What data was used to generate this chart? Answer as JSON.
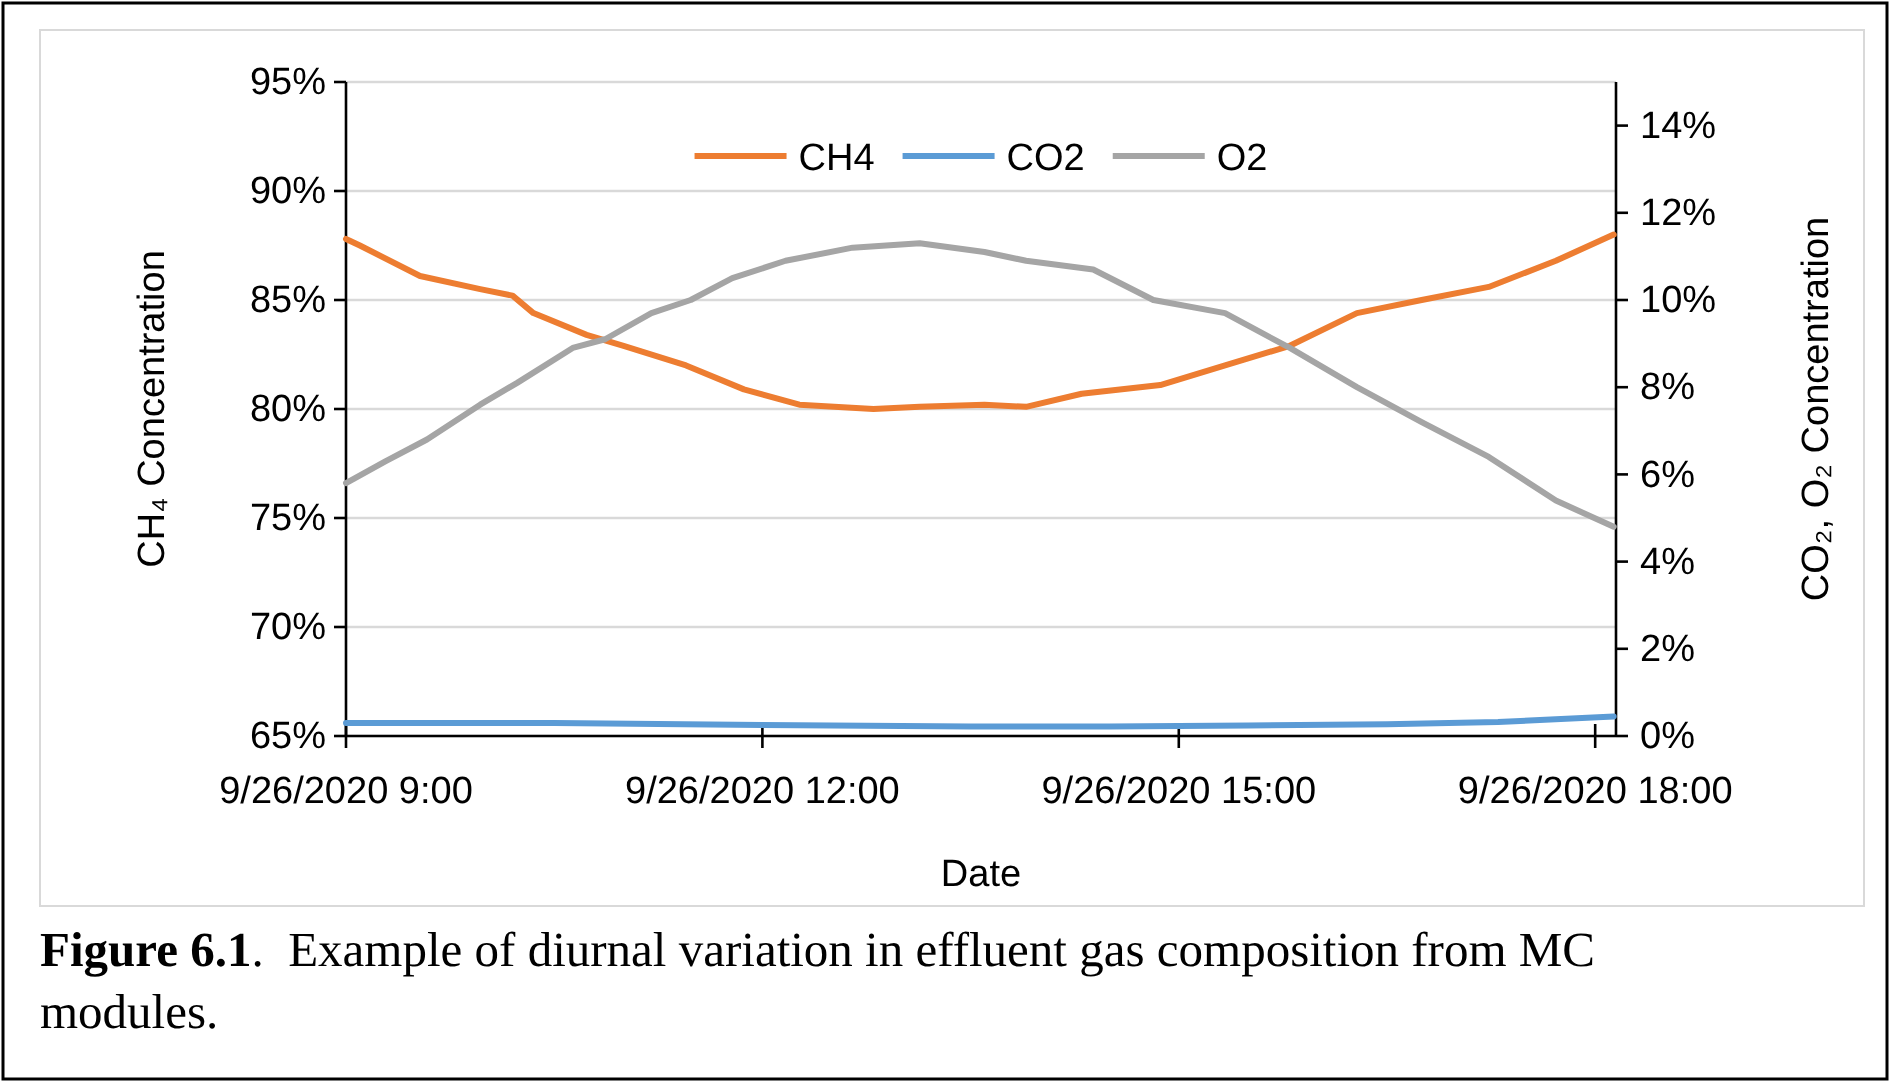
{
  "chart_data": {
    "type": "line",
    "xlabel": "Date",
    "ylabel": "CH₄ Concentration",
    "y2label": "CO₂, O₂ Concentration",
    "xlim": [
      "2020-09-26T09:00",
      "2020-09-26T18:09"
    ],
    "xticks": [
      {
        "value": "2020-09-26T09:00",
        "label": "9/26/2020 9:00"
      },
      {
        "value": "2020-09-26T12:00",
        "label": "9/26/2020 12:00"
      },
      {
        "value": "2020-09-26T15:00",
        "label": "9/26/2020 15:00"
      },
      {
        "value": "2020-09-26T18:00",
        "label": "9/26/2020 18:00"
      }
    ],
    "ylim": [
      65,
      95
    ],
    "yticks": [
      {
        "value": 65,
        "label": "65%"
      },
      {
        "value": 70,
        "label": "70%"
      },
      {
        "value": 75,
        "label": "75%"
      },
      {
        "value": 80,
        "label": "80%"
      },
      {
        "value": 85,
        "label": "85%"
      },
      {
        "value": 90,
        "label": "90%"
      },
      {
        "value": 95,
        "label": "95%"
      }
    ],
    "y2lim": [
      0,
      15
    ],
    "y2ticks": [
      {
        "value": 0,
        "label": "0%"
      },
      {
        "value": 2,
        "label": "2%"
      },
      {
        "value": 4,
        "label": "4%"
      },
      {
        "value": 6,
        "label": "6%"
      },
      {
        "value": 8,
        "label": "8%"
      },
      {
        "value": 10,
        "label": "10%"
      },
      {
        "value": 12,
        "label": "12%"
      },
      {
        "value": 14,
        "label": "14%"
      }
    ],
    "grid": "y",
    "legend": "top",
    "marker": "none",
    "line_style": "solid",
    "series": [
      {
        "name": "CH4",
        "color": "#ed7d31",
        "x": [
          "2020-09-26T09:00",
          "2020-09-26T09:06",
          "2020-09-26T09:32",
          "2020-09-26T09:58",
          "2020-09-26T10:12",
          "2020-09-26T10:21",
          "2020-09-26T10:44",
          "2020-09-26T11:00",
          "2020-09-26T11:27",
          "2020-09-26T11:52",
          "2020-09-26T12:16",
          "2020-09-26T12:48",
          "2020-09-26T13:08",
          "2020-09-26T13:36",
          "2020-09-26T13:54",
          "2020-09-26T14:18",
          "2020-09-26T14:52",
          "2020-09-26T15:20",
          "2020-09-26T15:48",
          "2020-09-26T16:17",
          "2020-09-26T16:45",
          "2020-09-26T17:14",
          "2020-09-26T17:43",
          "2020-09-26T18:08"
        ],
        "values": [
          87.8,
          87.5,
          86.1,
          85.5,
          85.2,
          84.4,
          83.4,
          82.9,
          82.0,
          80.9,
          80.2,
          80.0,
          80.1,
          80.2,
          80.1,
          80.7,
          81.1,
          82.0,
          82.9,
          84.4,
          85.0,
          85.6,
          86.8,
          88.0
        ]
      },
      {
        "name": "CO2",
        "color": "#5b9bd5",
        "axis": "y2",
        "x": [
          "2020-09-26T09:00",
          "2020-09-26T10:30",
          "2020-09-26T12:00",
          "2020-09-26T13:30",
          "2020-09-26T14:30",
          "2020-09-26T15:30",
          "2020-09-26T16:30",
          "2020-09-26T17:18",
          "2020-09-26T18:08"
        ],
        "values": [
          0.3,
          0.3,
          0.25,
          0.22,
          0.22,
          0.24,
          0.27,
          0.32,
          0.45
        ]
      },
      {
        "name": "O2",
        "color": "#a5a5a5",
        "axis": "y2",
        "x": [
          "2020-09-26T09:00",
          "2020-09-26T09:17",
          "2020-09-26T09:35",
          "2020-09-26T09:58",
          "2020-09-26T10:14",
          "2020-09-26T10:38",
          "2020-09-26T10:52",
          "2020-09-26T11:12",
          "2020-09-26T11:29",
          "2020-09-26T11:47",
          "2020-09-26T12:10",
          "2020-09-26T12:39",
          "2020-09-26T13:08",
          "2020-09-26T13:36",
          "2020-09-26T13:54",
          "2020-09-26T14:23",
          "2020-09-26T14:49",
          "2020-09-26T15:20",
          "2020-09-26T15:48",
          "2020-09-26T16:17",
          "2020-09-26T16:45",
          "2020-09-26T17:14",
          "2020-09-26T17:43",
          "2020-09-26T18:08"
        ],
        "values": [
          5.8,
          6.3,
          6.8,
          7.6,
          8.1,
          8.9,
          9.1,
          9.7,
          10.0,
          10.5,
          10.9,
          11.2,
          11.3,
          11.1,
          10.9,
          10.7,
          10.0,
          9.7,
          8.9,
          8.0,
          7.2,
          6.4,
          5.4,
          4.8
        ]
      }
    ],
    "annotations": [
      "Figure 6.1.  Example of diurnal variation in effluent gas composition from MC modules."
    ]
  }
}
